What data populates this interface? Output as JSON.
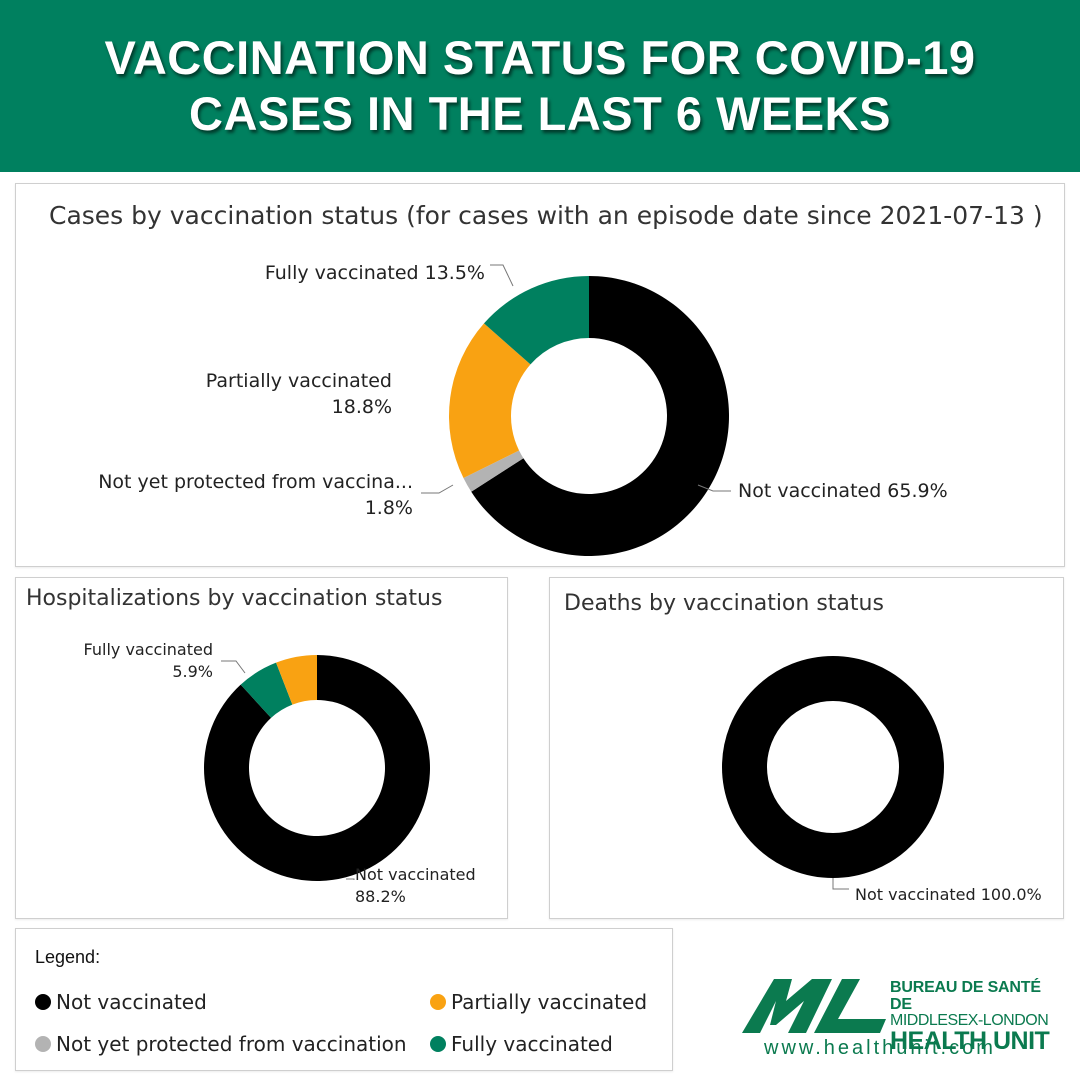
{
  "banner": {
    "line1": "VACCINATION STATUS FOR COVID-19",
    "line2": "CASES IN THE LAST 6 WEEKS"
  },
  "colors": {
    "not_vaccinated": "#000000",
    "not_yet_protected": "#b3b3b3",
    "partially_vaccinated": "#f9a212",
    "fully_vaccinated": "#00805f",
    "brand_green": "#00805f"
  },
  "chart_data": [
    {
      "type": "pie",
      "title": "Cases by vaccination status (for cases with an episode date since 2021-07-13 )",
      "categories": [
        "Not vaccinated",
        "Not yet protected from vaccination",
        "Partially vaccinated",
        "Fully vaccinated"
      ],
      "values": [
        65.9,
        1.8,
        18.8,
        13.5
      ],
      "labels": [
        {
          "lines": [
            "Not vaccinated 65.9%"
          ]
        },
        {
          "lines": [
            "Not yet protected from vaccina...",
            "1.8%"
          ]
        },
        {
          "lines": [
            "Partially vaccinated",
            "18.8%"
          ]
        },
        {
          "lines": [
            "Fully vaccinated 13.5%"
          ]
        }
      ]
    },
    {
      "type": "pie",
      "title": "Hospitalizations by vaccination status",
      "categories": [
        "Not vaccinated",
        "Fully vaccinated",
        "Partially vaccinated"
      ],
      "values": [
        88.2,
        5.9,
        5.9
      ],
      "labels": [
        {
          "lines": [
            "Not vaccinated",
            "88.2%"
          ]
        },
        {
          "lines": [
            "Fully vaccinated",
            "5.9%"
          ]
        },
        {
          "lines": []
        }
      ]
    },
    {
      "type": "pie",
      "title": "Deaths by vaccination status",
      "categories": [
        "Not vaccinated"
      ],
      "values": [
        100.0
      ],
      "labels": [
        {
          "lines": [
            "Not vaccinated 100.0%"
          ]
        }
      ]
    }
  ],
  "legend": {
    "title": "Legend:",
    "items": [
      {
        "label": "Not vaccinated"
      },
      {
        "label": "Partially vaccinated"
      },
      {
        "label": "Not yet protected from vaccination"
      },
      {
        "label": "Fully vaccinated"
      }
    ]
  },
  "logo": {
    "mark": "ML",
    "line1": "BUREAU DE SANTÉ DE",
    "line2": "MIDDLESEX-LONDON",
    "line3": "HEALTH UNIT",
    "url": "www.healthunit.com"
  }
}
